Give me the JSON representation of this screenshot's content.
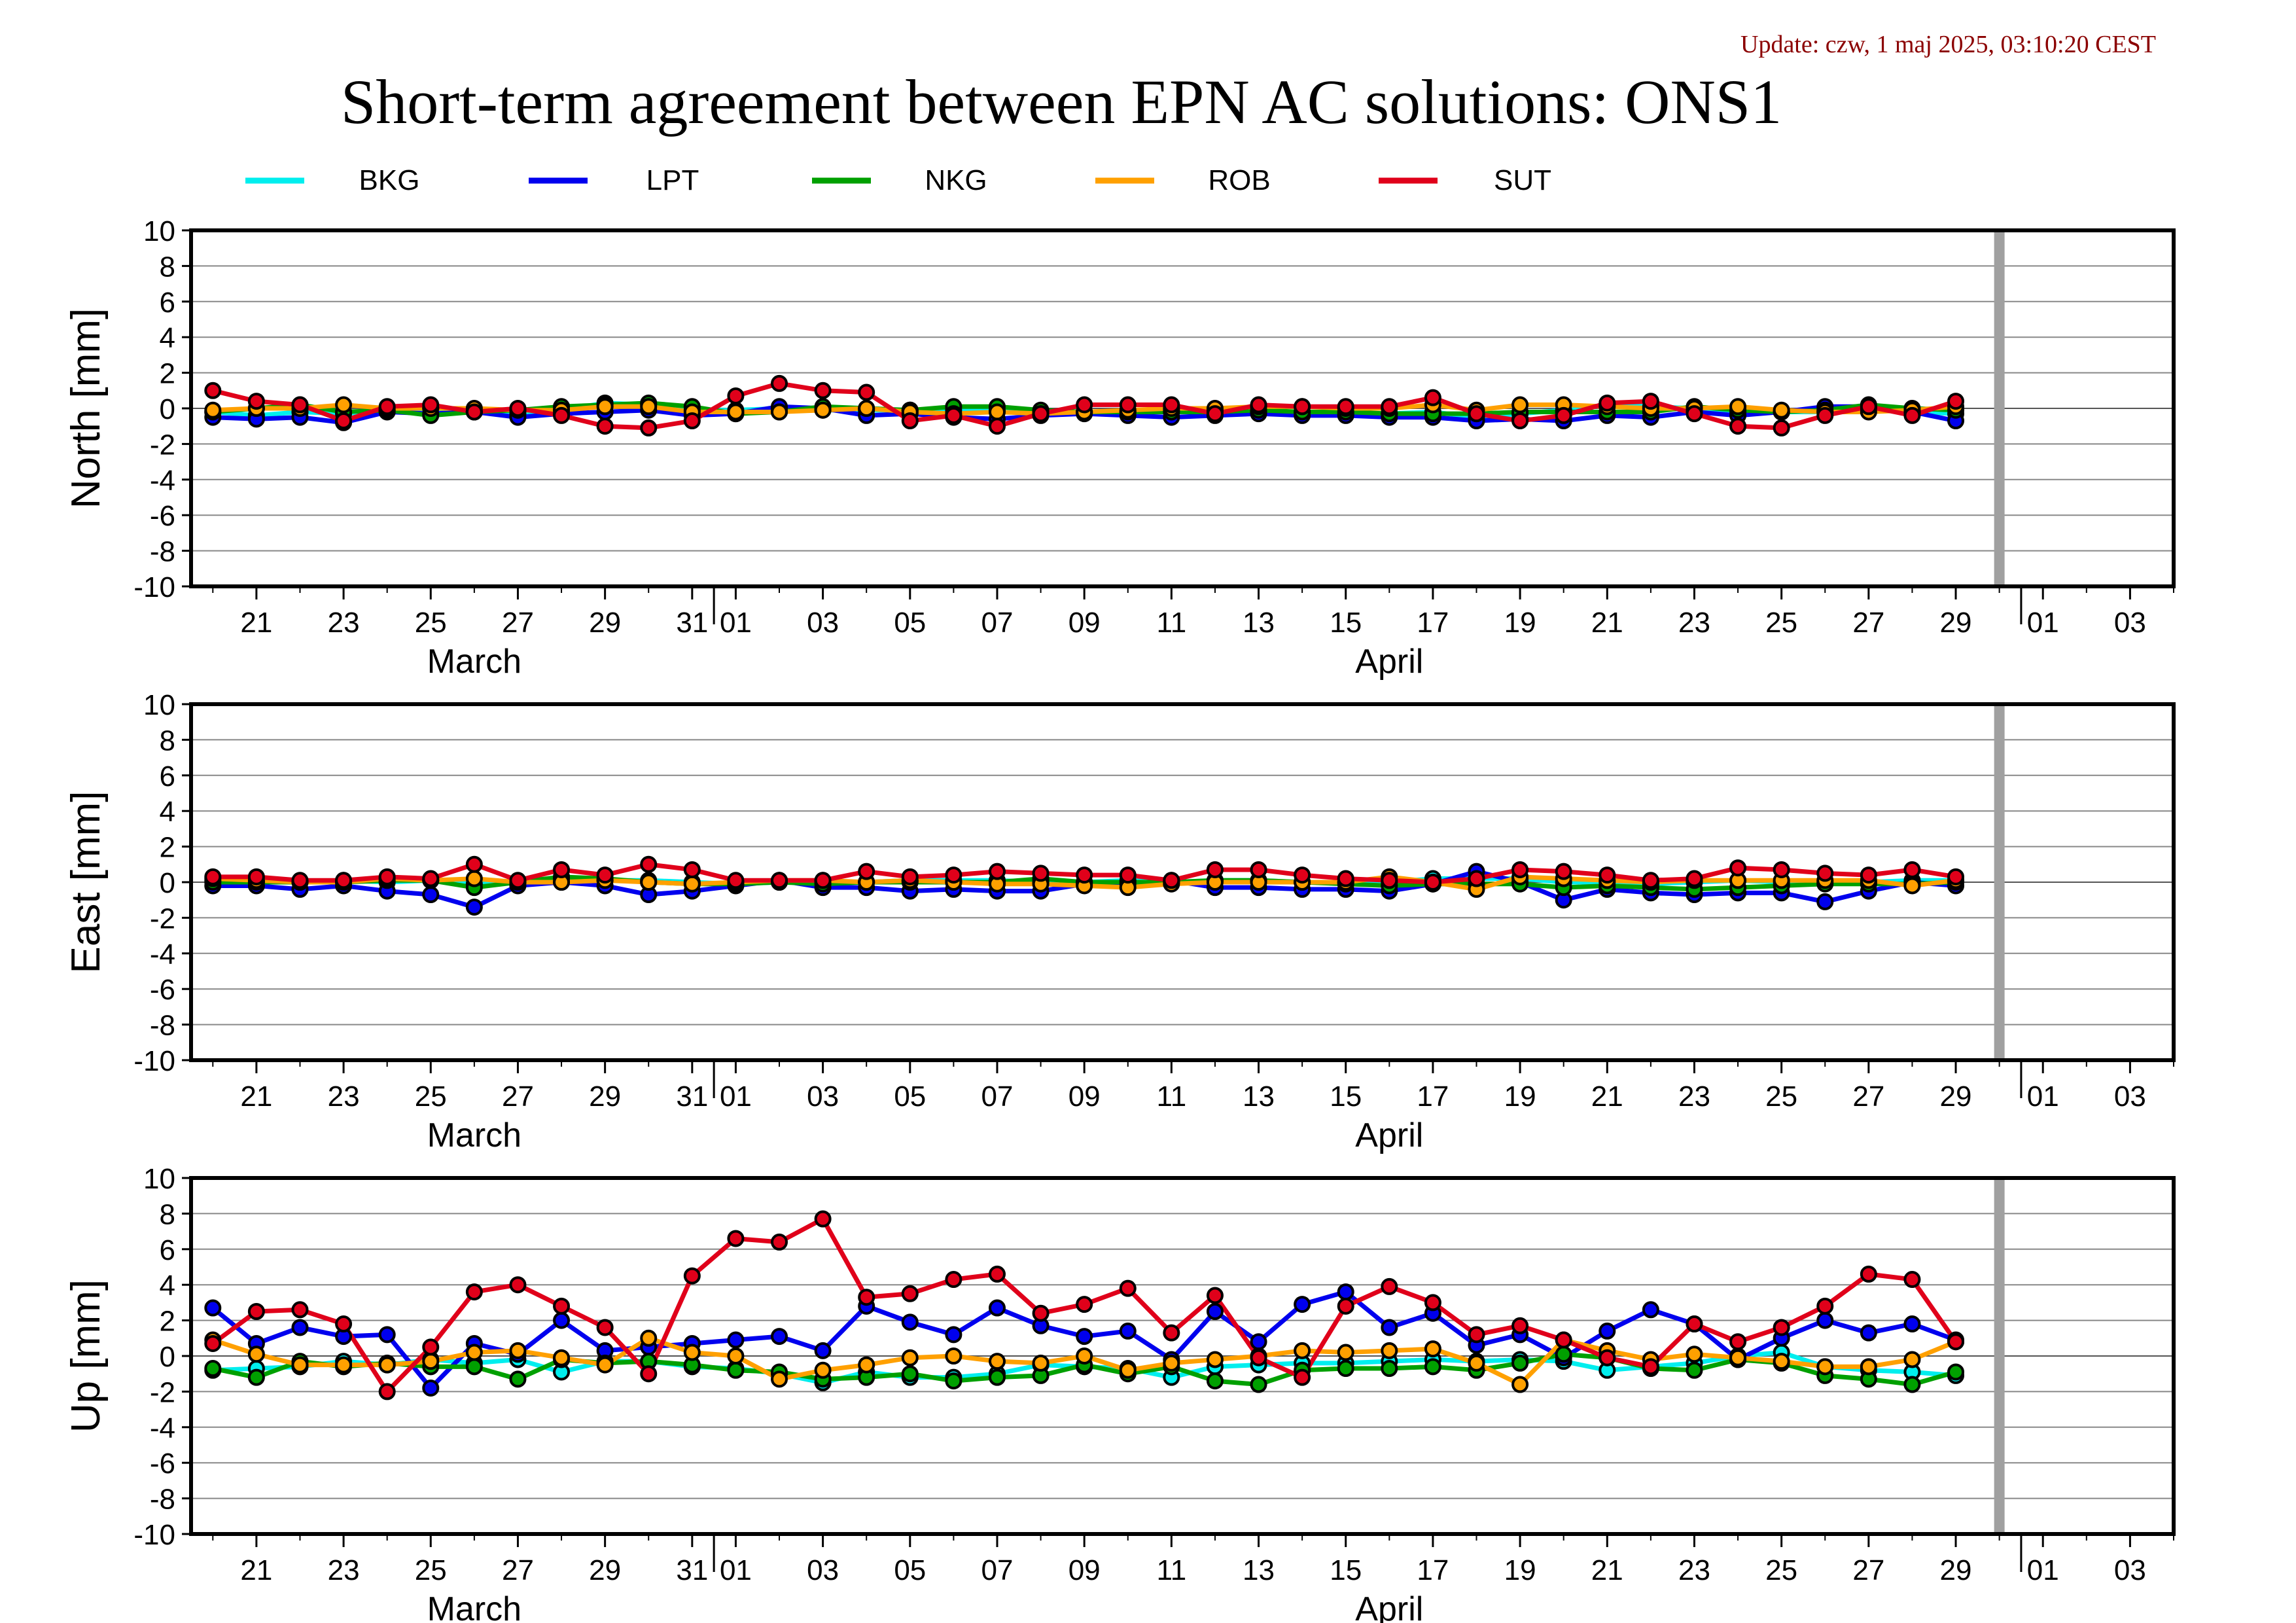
{
  "update_text": "Update: czw, 1 maj 2025, 03:10:20 CEST",
  "title": "Short-term agreement between EPN AC solutions: ONS1",
  "colors": {
    "BKG": "#00eeee",
    "LPT": "#0000ee",
    "NKG": "#00a000",
    "ROB": "#ffa000",
    "SUT": "#e0001a",
    "update_text": "#8b0000",
    "marker_line": "#a0a0a0"
  },
  "legend": [
    "BKG",
    "LPT",
    "NKG",
    "ROB",
    "SUT"
  ],
  "chart_data": [
    {
      "type": "line",
      "ylabel": "North [mm]",
      "ylim": [
        -10,
        10
      ],
      "yticks": [
        10,
        8,
        6,
        4,
        2,
        0,
        -2,
        -4,
        -6,
        -8,
        -10
      ],
      "xlim": [
        "2025-03-19T12:00",
        "2025-05-04"
      ],
      "xtick_labels": [
        "21",
        "23",
        "25",
        "27",
        "29",
        "31",
        "01",
        "03",
        "05",
        "07",
        "09",
        "11",
        "13",
        "15",
        "17",
        "19",
        "21",
        "23",
        "25",
        "27",
        "29",
        "01",
        "03"
      ],
      "month_labels": [
        "March",
        "April"
      ],
      "grid": "horizontal",
      "marker_day": "2025-04-30",
      "x": [
        "03-20",
        "03-21",
        "03-22",
        "03-23",
        "03-24",
        "03-25",
        "03-26",
        "03-27",
        "03-28",
        "03-29",
        "03-30",
        "03-31",
        "04-01",
        "04-02",
        "04-03",
        "04-04",
        "04-05",
        "04-06",
        "04-07",
        "04-08",
        "04-09",
        "04-10",
        "04-11",
        "04-12",
        "04-13",
        "04-14",
        "04-15",
        "04-16",
        "04-17",
        "04-18",
        "04-19",
        "04-20",
        "04-21",
        "04-22",
        "04-23",
        "04-24",
        "04-25",
        "04-26",
        "04-27",
        "04-28",
        "04-29"
      ],
      "series": [
        {
          "name": "BKG",
          "values": [
            -0.2,
            -0.4,
            -0.2,
            -0.3,
            -0.1,
            0.0,
            -0.2,
            -0.3,
            -0.1,
            0.3,
            0.2,
            -0.1,
            -0.1,
            0.0,
            -0.1,
            -0.1,
            -0.1,
            -0.1,
            -0.1,
            -0.2,
            -0.2,
            -0.2,
            -0.1,
            -0.1,
            -0.2,
            -0.2,
            -0.3,
            -0.3,
            -0.2,
            -0.5,
            -0.3,
            -0.1,
            0.2,
            0.1,
            0.0,
            -0.2,
            -0.2,
            -0.2,
            0.0,
            -0.2,
            -0.3
          ]
        },
        {
          "name": "LPT",
          "values": [
            -0.5,
            -0.6,
            -0.5,
            -0.8,
            -0.2,
            -0.3,
            -0.2,
            -0.5,
            -0.3,
            -0.2,
            -0.1,
            -0.4,
            -0.3,
            0.1,
            0.0,
            -0.4,
            -0.3,
            -0.5,
            -0.6,
            -0.4,
            -0.3,
            -0.4,
            -0.5,
            -0.4,
            -0.3,
            -0.4,
            -0.4,
            -0.5,
            -0.5,
            -0.7,
            -0.6,
            -0.7,
            -0.4,
            -0.5,
            -0.2,
            -0.4,
            -0.2,
            0.1,
            0.1,
            -0.2,
            -0.7
          ]
        },
        {
          "name": "NKG",
          "values": [
            -0.2,
            0.0,
            0.2,
            -0.2,
            -0.1,
            -0.4,
            -0.2,
            -0.1,
            0.1,
            0.2,
            0.3,
            0.1,
            -0.3,
            -0.2,
            0.1,
            0.0,
            -0.1,
            0.1,
            0.1,
            -0.1,
            -0.2,
            -0.2,
            -0.2,
            -0.2,
            -0.1,
            -0.2,
            -0.2,
            -0.3,
            -0.3,
            -0.3,
            -0.2,
            -0.2,
            -0.2,
            -0.2,
            0.1,
            -0.1,
            -0.2,
            -0.1,
            0.2,
            0.0,
            -0.1
          ]
        },
        {
          "name": "ROB",
          "values": [
            -0.1,
            0.0,
            0.0,
            0.2,
            0.0,
            0.0,
            0.0,
            -0.1,
            -0.1,
            0.1,
            0.1,
            -0.2,
            -0.2,
            -0.2,
            -0.1,
            0.0,
            -0.2,
            -0.3,
            -0.2,
            -0.3,
            -0.2,
            -0.1,
            0.0,
            0.0,
            0.1,
            0.1,
            0.0,
            0.0,
            0.2,
            -0.1,
            0.2,
            0.2,
            0.1,
            0.0,
            0.0,
            0.1,
            -0.1,
            -0.2,
            -0.2,
            -0.1,
            0.1
          ]
        },
        {
          "name": "SUT",
          "values": [
            1.0,
            0.4,
            0.2,
            -0.7,
            0.1,
            0.2,
            -0.2,
            0.0,
            -0.4,
            -1.0,
            -1.1,
            -0.7,
            0.7,
            1.4,
            1.0,
            0.9,
            -0.7,
            -0.4,
            -1.0,
            -0.3,
            0.2,
            0.2,
            0.2,
            -0.3,
            0.2,
            0.1,
            0.1,
            0.1,
            0.6,
            -0.3,
            -0.7,
            -0.4,
            0.3,
            0.4,
            -0.3,
            -1.0,
            -1.1,
            -0.4,
            0.1,
            -0.4,
            0.4
          ]
        }
      ]
    },
    {
      "type": "line",
      "ylabel": "East [mm]",
      "ylim": [
        -10,
        10
      ],
      "yticks": [
        10,
        8,
        6,
        4,
        2,
        0,
        -2,
        -4,
        -6,
        -8,
        -10
      ],
      "xlim": [
        "2025-03-19T12:00",
        "2025-05-04"
      ],
      "xtick_labels": [
        "21",
        "23",
        "25",
        "27",
        "29",
        "31",
        "01",
        "03",
        "05",
        "07",
        "09",
        "11",
        "13",
        "15",
        "17",
        "19",
        "21",
        "23",
        "25",
        "27",
        "29",
        "01",
        "03"
      ],
      "month_labels": [
        "March",
        "April"
      ],
      "grid": "horizontal",
      "marker_day": "2025-04-30",
      "x": [
        "03-20",
        "03-21",
        "03-22",
        "03-23",
        "03-24",
        "03-25",
        "03-26",
        "03-27",
        "03-28",
        "03-29",
        "03-30",
        "03-31",
        "04-01",
        "04-02",
        "04-03",
        "04-04",
        "04-05",
        "04-06",
        "04-07",
        "04-08",
        "04-09",
        "04-10",
        "04-11",
        "04-12",
        "04-13",
        "04-14",
        "04-15",
        "04-16",
        "04-17",
        "04-18",
        "04-19",
        "04-20",
        "04-21",
        "04-22",
        "04-23",
        "04-24",
        "04-25",
        "04-26",
        "04-27",
        "04-28",
        "04-29"
      ],
      "series": [
        {
          "name": "BKG",
          "values": [
            0.1,
            0.0,
            0.0,
            0.1,
            0.0,
            0.1,
            -0.1,
            0.0,
            0.2,
            0.1,
            0.1,
            0.0,
            -0.1,
            0.0,
            0.0,
            0.0,
            0.1,
            0.1,
            0.1,
            0.0,
            0.0,
            0.1,
            0.0,
            0.1,
            0.1,
            0.0,
            0.0,
            0.0,
            0.2,
            0.2,
            0.2,
            0.0,
            0.0,
            -0.1,
            0.0,
            0.1,
            0.0,
            0.0,
            0.0,
            0.1,
            0.1
          ]
        },
        {
          "name": "LPT",
          "values": [
            -0.2,
            -0.2,
            -0.4,
            -0.2,
            -0.5,
            -0.7,
            -1.4,
            -0.2,
            0.0,
            -0.2,
            -0.7,
            -0.5,
            -0.2,
            0.1,
            -0.3,
            -0.3,
            -0.5,
            -0.4,
            -0.5,
            -0.5,
            -0.1,
            -0.1,
            0.1,
            -0.3,
            -0.3,
            -0.4,
            -0.4,
            -0.5,
            -0.1,
            0.6,
            0.0,
            -1.0,
            -0.4,
            -0.6,
            -0.7,
            -0.6,
            -0.6,
            -1.1,
            -0.5,
            0.0,
            -0.2
          ]
        },
        {
          "name": "NKG",
          "values": [
            0.0,
            0.0,
            0.0,
            0.0,
            0.1,
            0.1,
            -0.3,
            0.0,
            0.3,
            0.2,
            0.0,
            -0.1,
            -0.1,
            0.0,
            -0.1,
            0.0,
            0.0,
            0.0,
            0.0,
            0.2,
            0.0,
            0.0,
            0.0,
            0.1,
            0.1,
            0.0,
            -0.1,
            -0.2,
            -0.1,
            -0.1,
            -0.1,
            -0.3,
            -0.2,
            -0.3,
            -0.4,
            -0.3,
            -0.2,
            -0.1,
            -0.1,
            -0.1,
            0.0
          ]
        },
        {
          "name": "ROB",
          "values": [
            0.2,
            0.1,
            0.0,
            0.0,
            0.2,
            0.1,
            0.2,
            0.0,
            0.0,
            0.1,
            0.0,
            -0.1,
            0.0,
            0.1,
            0.1,
            0.0,
            0.1,
            0.0,
            -0.1,
            -0.1,
            -0.2,
            -0.3,
            -0.1,
            0.0,
            0.0,
            0.0,
            0.0,
            0.3,
            0.0,
            -0.4,
            0.3,
            0.2,
            0.1,
            0.0,
            0.1,
            0.1,
            0.1,
            0.1,
            0.1,
            -0.2,
            0.1
          ]
        },
        {
          "name": "SUT",
          "values": [
            0.3,
            0.3,
            0.1,
            0.1,
            0.3,
            0.2,
            1.0,
            0.1,
            0.7,
            0.4,
            1.0,
            0.7,
            0.1,
            0.1,
            0.1,
            0.6,
            0.3,
            0.4,
            0.6,
            0.5,
            0.4,
            0.4,
            0.1,
            0.7,
            0.7,
            0.4,
            0.2,
            0.1,
            0.0,
            0.2,
            0.7,
            0.6,
            0.4,
            0.1,
            0.2,
            0.8,
            0.7,
            0.5,
            0.4,
            0.7,
            0.3
          ]
        }
      ]
    },
    {
      "type": "line",
      "ylabel": "Up [mm]",
      "ylim": [
        -10,
        10
      ],
      "yticks": [
        10,
        8,
        6,
        4,
        2,
        0,
        -2,
        -4,
        -6,
        -8,
        -10
      ],
      "xlim": [
        "2025-03-19T12:00",
        "2025-05-04"
      ],
      "xtick_labels": [
        "21",
        "23",
        "25",
        "27",
        "29",
        "31",
        "01",
        "03",
        "05",
        "07",
        "09",
        "11",
        "13",
        "15",
        "17",
        "19",
        "21",
        "23",
        "25",
        "27",
        "29",
        "01",
        "03"
      ],
      "month_labels": [
        "March",
        "April"
      ],
      "grid": "horizontal",
      "marker_day": "2025-04-30",
      "x": [
        "03-20",
        "03-21",
        "03-22",
        "03-23",
        "03-24",
        "03-25",
        "03-26",
        "03-27",
        "03-28",
        "03-29",
        "03-30",
        "03-31",
        "04-01",
        "04-02",
        "04-03",
        "04-04",
        "04-05",
        "04-06",
        "04-07",
        "04-08",
        "04-09",
        "04-10",
        "04-11",
        "04-12",
        "04-13",
        "04-14",
        "04-15",
        "04-16",
        "04-17",
        "04-18",
        "04-19",
        "04-20",
        "04-21",
        "04-22",
        "04-23",
        "04-24",
        "04-25",
        "04-26",
        "04-27",
        "04-28",
        "04-29"
      ],
      "series": [
        {
          "name": "BKG",
          "values": [
            -0.8,
            -0.7,
            -0.6,
            -0.3,
            -0.5,
            -0.2,
            -0.4,
            -0.2,
            -0.9,
            -0.3,
            -0.3,
            -0.6,
            -0.7,
            -1.0,
            -1.5,
            -0.9,
            -1.2,
            -1.2,
            -1.0,
            -0.5,
            -0.6,
            -0.7,
            -1.2,
            -0.6,
            -0.5,
            -0.4,
            -0.4,
            -0.3,
            -0.2,
            -0.3,
            -0.2,
            -0.3,
            -0.8,
            -0.6,
            -0.4,
            0.0,
            0.2,
            -0.6,
            -0.8,
            -0.9,
            -1.1
          ]
        },
        {
          "name": "LPT",
          "values": [
            2.7,
            0.7,
            1.6,
            1.1,
            1.2,
            -1.8,
            0.7,
            0.1,
            2.0,
            0.3,
            0.5,
            0.7,
            0.9,
            1.1,
            0.3,
            2.8,
            1.9,
            1.2,
            2.7,
            1.7,
            1.1,
            1.4,
            -0.2,
            2.5,
            0.8,
            2.9,
            3.6,
            1.6,
            2.4,
            0.6,
            1.2,
            -0.1,
            1.4,
            2.6,
            1.8,
            -0.2,
            1.0,
            2.0,
            1.3,
            1.8,
            0.9
          ]
        },
        {
          "name": "NKG",
          "values": [
            -0.7,
            -1.2,
            -0.3,
            -0.6,
            -0.4,
            -0.6,
            -0.6,
            -1.3,
            -0.2,
            -0.4,
            -0.3,
            -0.5,
            -0.8,
            -0.9,
            -1.3,
            -1.2,
            -1.0,
            -1.4,
            -1.2,
            -1.1,
            -0.5,
            -1.0,
            -0.6,
            -1.4,
            -1.6,
            -0.8,
            -0.7,
            -0.7,
            -0.6,
            -0.8,
            -0.4,
            0.1,
            -0.1,
            -0.7,
            -0.8,
            -0.2,
            -0.4,
            -1.1,
            -1.3,
            -1.6,
            -0.9
          ]
        },
        {
          "name": "ROB",
          "values": [
            0.9,
            0.1,
            -0.5,
            -0.5,
            -0.5,
            -0.3,
            0.2,
            0.3,
            -0.1,
            -0.5,
            1.0,
            0.2,
            0.0,
            -1.3,
            -0.8,
            -0.5,
            -0.1,
            0.0,
            -0.3,
            -0.4,
            0.0,
            -0.8,
            -0.4,
            -0.2,
            0.0,
            0.3,
            0.2,
            0.3,
            0.4,
            -0.4,
            -1.6,
            0.9,
            0.3,
            -0.2,
            0.1,
            -0.1,
            -0.3,
            -0.6,
            -0.6,
            -0.2,
            0.8
          ]
        },
        {
          "name": "SUT",
          "values": [
            0.7,
            2.5,
            2.6,
            1.8,
            -2.0,
            0.5,
            3.6,
            4.0,
            2.8,
            1.6,
            -1.0,
            4.5,
            6.6,
            6.4,
            7.7,
            3.3,
            3.5,
            4.3,
            4.6,
            2.4,
            2.9,
            3.8,
            1.3,
            3.4,
            -0.1,
            -1.2,
            2.8,
            3.9,
            3.0,
            1.2,
            1.7,
            0.9,
            -0.1,
            -0.6,
            1.8,
            0.8,
            1.6,
            2.8,
            4.6,
            4.3,
            0.8
          ]
        }
      ]
    }
  ]
}
